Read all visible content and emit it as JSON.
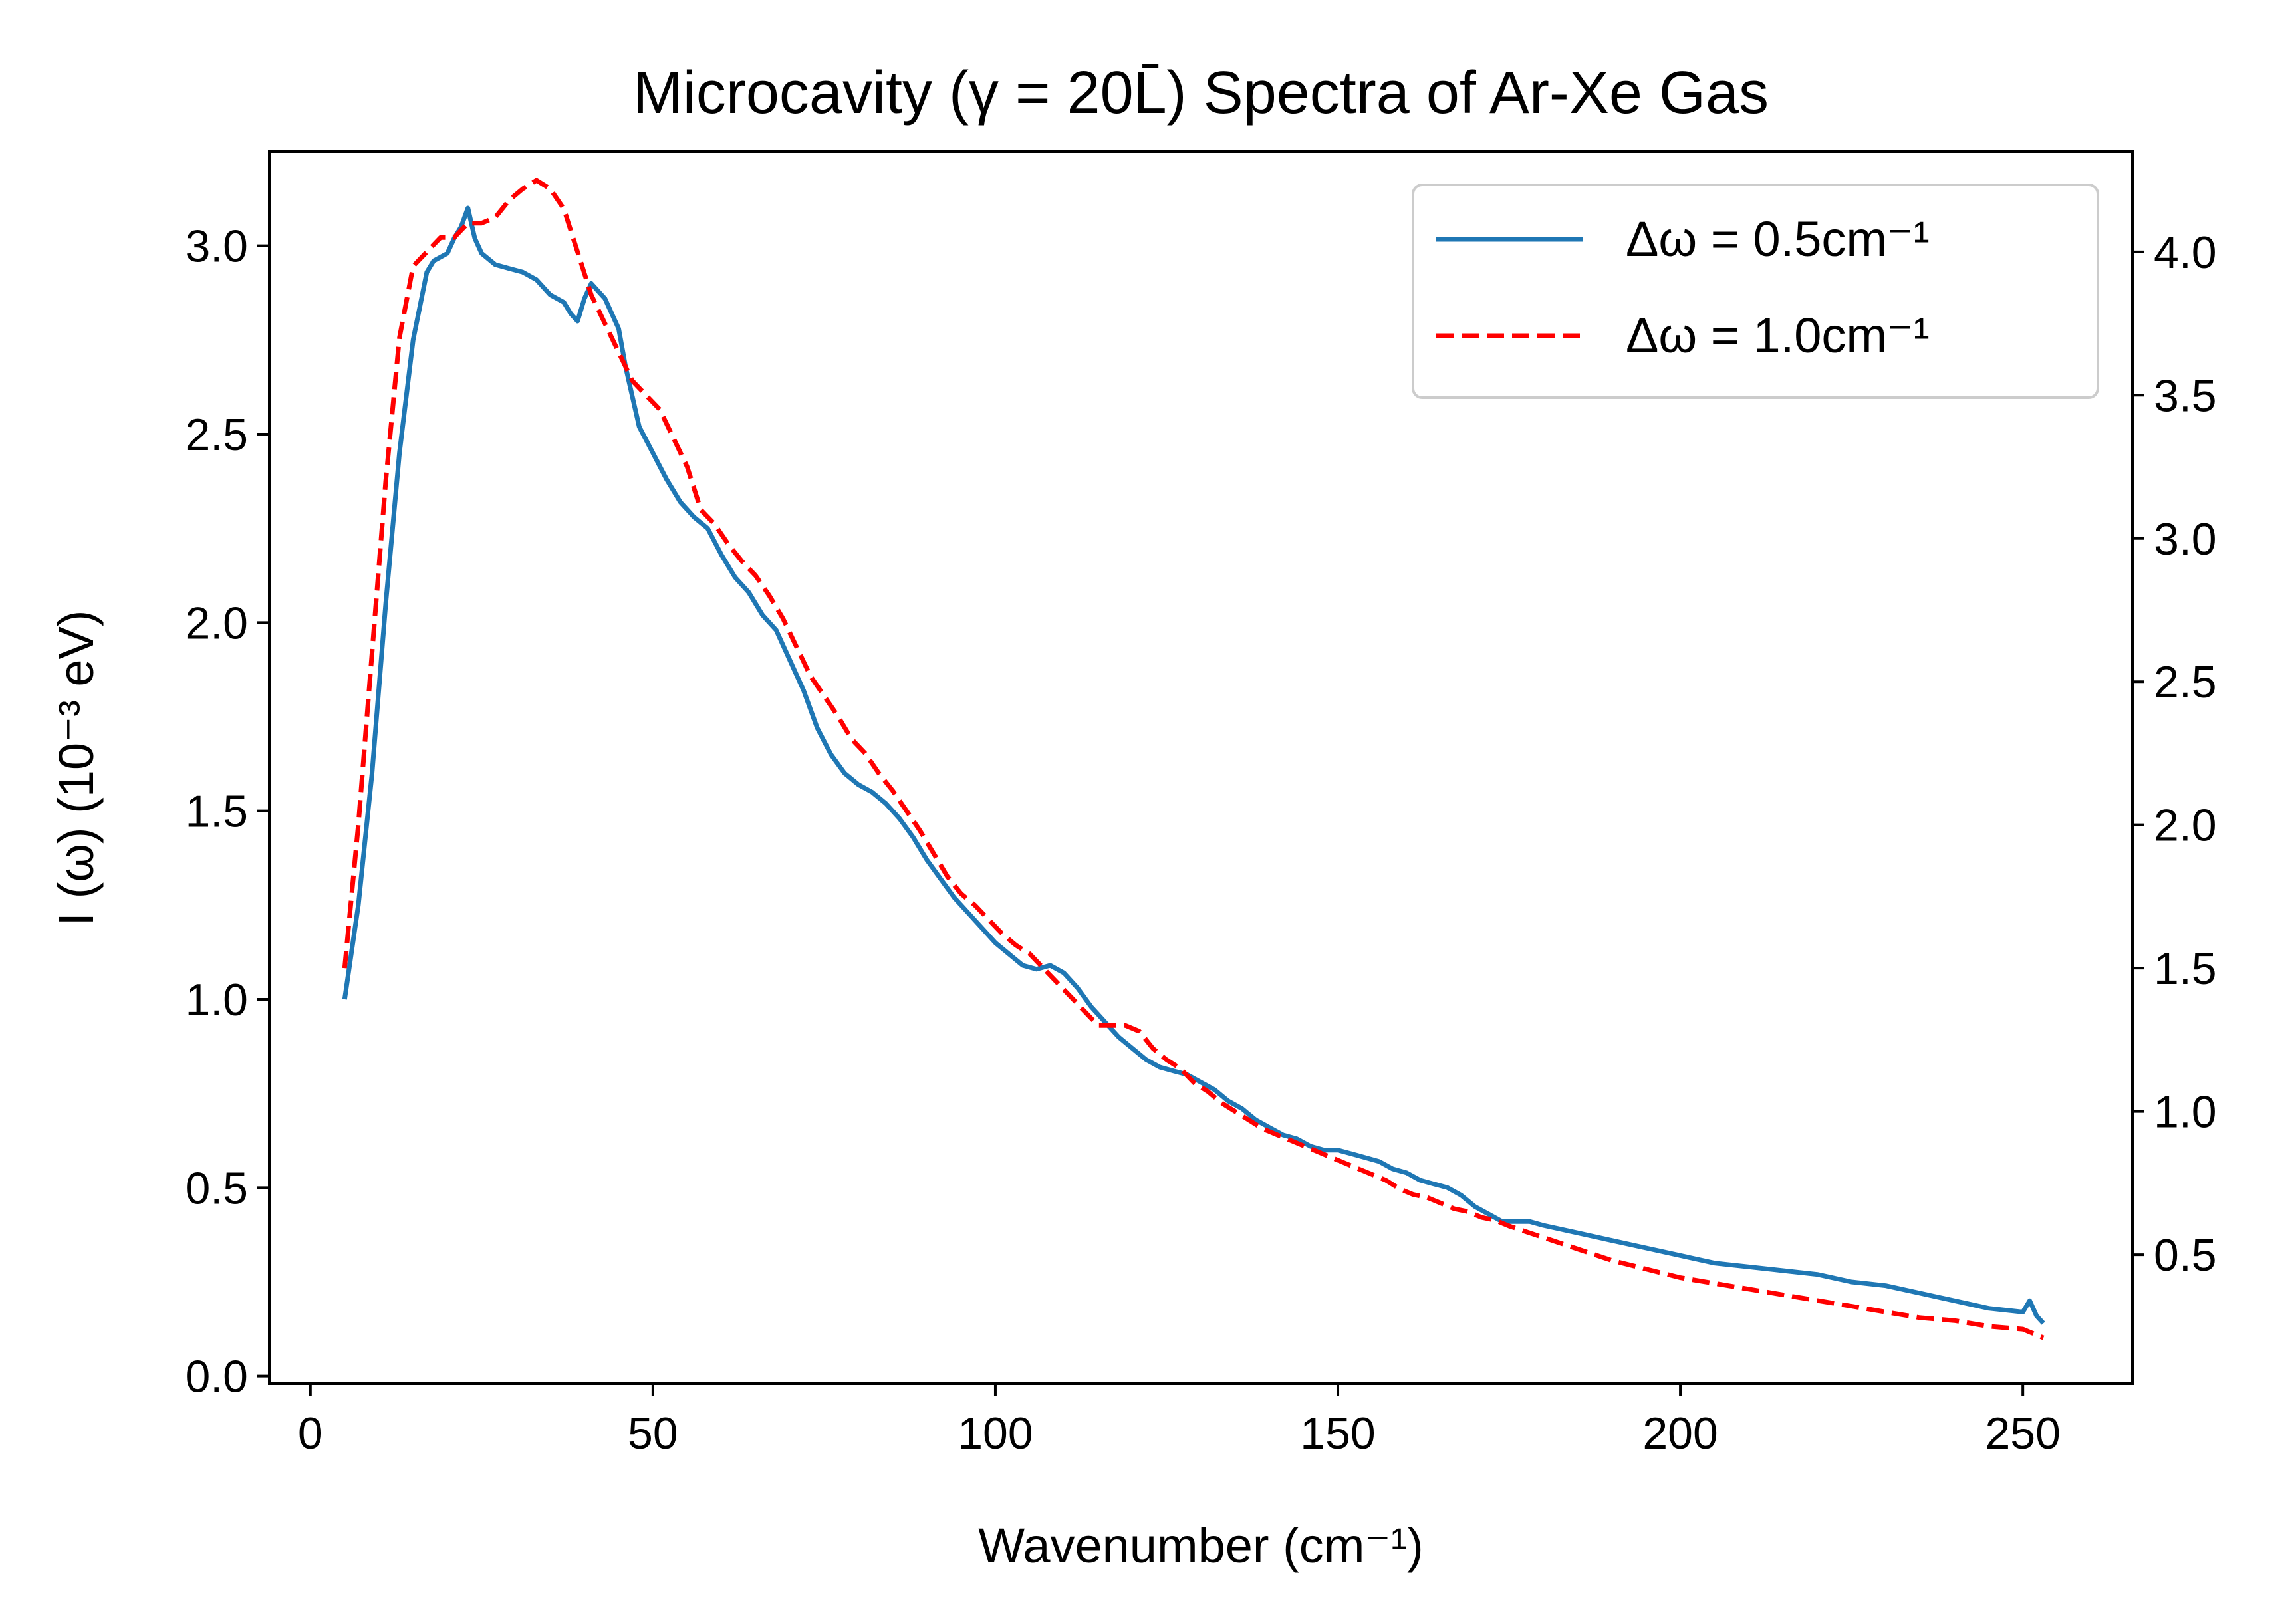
{
  "chart_data": {
    "type": "line",
    "title": "Microcavity (γ = 20L̄) Spectra of Ar-Xe Gas",
    "xlabel": "Wavenumber (cm⁻¹)",
    "ylabel": "I (ω) (10⁻³ eV)",
    "xlim": [
      -6,
      266
    ],
    "ylim": [
      -0.02,
      3.25
    ],
    "y2lim": [
      0.05,
      4.35
    ],
    "xticks": [
      0,
      50,
      100,
      150,
      200,
      250
    ],
    "xtick_labels": [
      "0",
      "50",
      "100",
      "150",
      "200",
      "250"
    ],
    "yticks": [
      0.0,
      0.5,
      1.0,
      1.5,
      2.0,
      2.5,
      3.0
    ],
    "ytick_labels": [
      "0.0",
      "0.5",
      "1.0",
      "1.5",
      "2.0",
      "2.5",
      "3.0"
    ],
    "y2ticks": [
      0.5,
      1.0,
      1.5,
      2.0,
      2.5,
      3.0,
      3.5,
      4.0
    ],
    "y2tick_labels": [
      "0.5",
      "1.0",
      "1.5",
      "2.0",
      "2.5",
      "3.0",
      "3.5",
      "4.0"
    ],
    "grid": false,
    "legend_position": "top-right",
    "series": [
      {
        "name": "Δω = 0.5cm⁻¹",
        "axis": "left",
        "color": "#1f77b4",
        "style": "solid",
        "x": [
          5,
          7,
          9,
          11,
          13,
          15,
          17,
          18,
          19,
          20,
          21,
          22,
          23,
          24,
          25,
          27,
          29,
          31,
          33,
          35,
          37,
          38,
          39,
          40,
          41,
          42,
          43,
          44,
          45,
          46,
          47,
          48,
          50,
          52,
          54,
          56,
          58,
          60,
          62,
          64,
          66,
          68,
          70,
          72,
          74,
          76,
          78,
          80,
          82,
          84,
          86,
          88,
          90,
          92,
          94,
          96,
          98,
          100,
          102,
          104,
          106,
          108,
          110,
          112,
          114,
          116,
          118,
          120,
          122,
          124,
          126,
          128,
          130,
          132,
          134,
          136,
          138,
          140,
          142,
          144,
          146,
          148,
          150,
          152,
          154,
          156,
          158,
          160,
          162,
          164,
          166,
          168,
          170,
          172,
          174,
          176,
          178,
          180,
          185,
          190,
          195,
          200,
          205,
          210,
          215,
          220,
          225,
          230,
          235,
          240,
          245,
          250,
          251,
          252,
          253
        ],
        "values": [
          1.0,
          1.25,
          1.6,
          2.05,
          2.45,
          2.75,
          2.93,
          2.96,
          2.97,
          2.98,
          3.02,
          3.05,
          3.1,
          3.02,
          2.98,
          2.95,
          2.94,
          2.93,
          2.91,
          2.87,
          2.85,
          2.82,
          2.8,
          2.86,
          2.9,
          2.88,
          2.86,
          2.82,
          2.78,
          2.68,
          2.6,
          2.52,
          2.45,
          2.38,
          2.32,
          2.28,
          2.25,
          2.18,
          2.12,
          2.08,
          2.02,
          1.98,
          1.9,
          1.82,
          1.72,
          1.65,
          1.6,
          1.57,
          1.55,
          1.52,
          1.48,
          1.43,
          1.37,
          1.32,
          1.27,
          1.23,
          1.19,
          1.15,
          1.12,
          1.09,
          1.08,
          1.09,
          1.07,
          1.03,
          0.98,
          0.94,
          0.9,
          0.87,
          0.84,
          0.82,
          0.81,
          0.8,
          0.78,
          0.76,
          0.73,
          0.71,
          0.68,
          0.66,
          0.64,
          0.63,
          0.61,
          0.6,
          0.6,
          0.59,
          0.58,
          0.57,
          0.55,
          0.54,
          0.52,
          0.51,
          0.5,
          0.48,
          0.45,
          0.43,
          0.41,
          0.41,
          0.41,
          0.4,
          0.38,
          0.36,
          0.34,
          0.32,
          0.3,
          0.29,
          0.28,
          0.27,
          0.25,
          0.24,
          0.22,
          0.2,
          0.18,
          0.17,
          0.2,
          0.16,
          0.14
        ]
      },
      {
        "name": "Δω = 1.0cm⁻¹",
        "axis": "right",
        "color": "#ff0000",
        "style": "dashed",
        "x": [
          5,
          7,
          9,
          11,
          13,
          15,
          17,
          19,
          21,
          23,
          25,
          27,
          29,
          31,
          33,
          35,
          37,
          39,
          41,
          43,
          45,
          47,
          49,
          51,
          53,
          55,
          57,
          59,
          61,
          63,
          65,
          67,
          69,
          71,
          73,
          75,
          77,
          79,
          81,
          83,
          85,
          87,
          89,
          91,
          93,
          95,
          97,
          99,
          101,
          103,
          105,
          107,
          109,
          111,
          113,
          115,
          117,
          119,
          121,
          123,
          125,
          127,
          129,
          131,
          133,
          135,
          137,
          139,
          141,
          143,
          145,
          147,
          149,
          151,
          153,
          155,
          157,
          159,
          161,
          163,
          165,
          167,
          169,
          171,
          173,
          175,
          180,
          185,
          190,
          195,
          200,
          205,
          210,
          215,
          220,
          225,
          230,
          235,
          240,
          245,
          250,
          252,
          253
        ],
        "values": [
          1.5,
          2.0,
          2.6,
          3.2,
          3.7,
          3.95,
          4.0,
          4.05,
          4.05,
          4.1,
          4.1,
          4.12,
          4.18,
          4.22,
          4.25,
          4.22,
          4.15,
          4.0,
          3.85,
          3.75,
          3.65,
          3.55,
          3.5,
          3.45,
          3.35,
          3.25,
          3.1,
          3.05,
          2.98,
          2.92,
          2.87,
          2.8,
          2.72,
          2.62,
          2.52,
          2.45,
          2.38,
          2.3,
          2.25,
          2.18,
          2.12,
          2.05,
          1.98,
          1.9,
          1.82,
          1.76,
          1.72,
          1.67,
          1.62,
          1.58,
          1.55,
          1.5,
          1.45,
          1.4,
          1.35,
          1.3,
          1.3,
          1.3,
          1.28,
          1.22,
          1.18,
          1.15,
          1.1,
          1.07,
          1.03,
          1.0,
          0.97,
          0.94,
          0.92,
          0.9,
          0.88,
          0.86,
          0.84,
          0.82,
          0.8,
          0.78,
          0.76,
          0.73,
          0.71,
          0.7,
          0.68,
          0.66,
          0.65,
          0.63,
          0.62,
          0.6,
          0.56,
          0.52,
          0.48,
          0.45,
          0.42,
          0.4,
          0.38,
          0.36,
          0.34,
          0.32,
          0.3,
          0.28,
          0.27,
          0.25,
          0.24,
          0.22,
          0.21
        ]
      }
    ]
  }
}
